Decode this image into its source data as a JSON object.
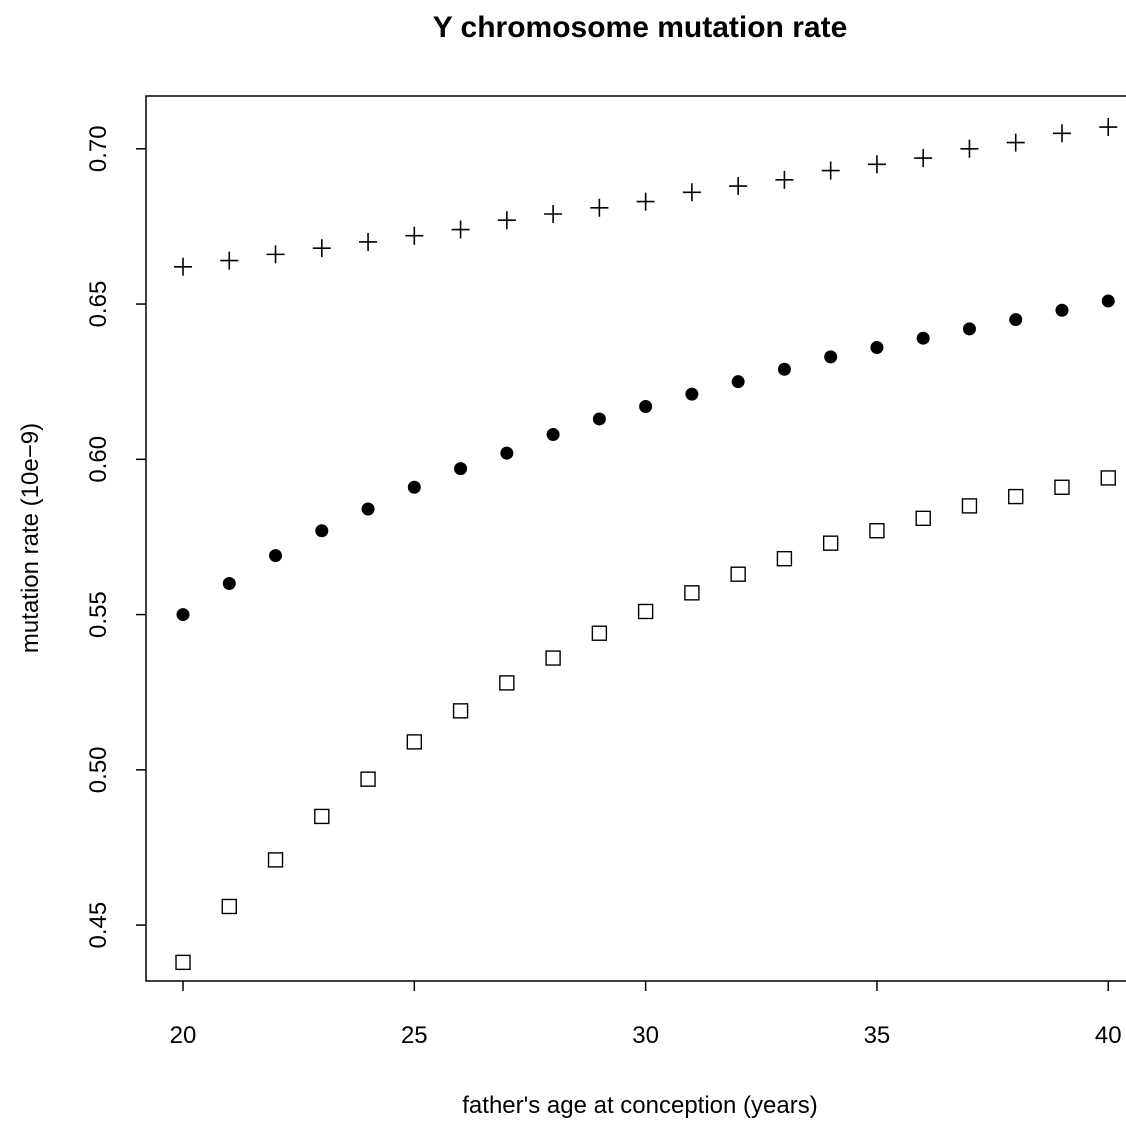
{
  "chart_data": {
    "type": "scatter",
    "title": "Y chromosome mutation rate",
    "xlabel": "father's age at conception (years)",
    "ylabel": "mutation rate (10e−9)",
    "xlim": [
      19.2,
      40.6
    ],
    "ylim": [
      0.432,
      0.717
    ],
    "x_ticks": [
      20,
      25,
      30,
      35,
      40
    ],
    "x_tick_labels": [
      "20",
      "25",
      "30",
      "35",
      "40"
    ],
    "y_ticks": [
      0.45,
      0.5,
      0.55,
      0.6,
      0.65,
      0.7
    ],
    "y_tick_labels": [
      "0.45",
      "0.50",
      "0.55",
      "0.60",
      "0.65",
      "0.70"
    ],
    "grid": false,
    "legend": "none",
    "x": [
      20,
      21,
      22,
      23,
      24,
      25,
      26,
      27,
      28,
      29,
      30,
      31,
      32,
      33,
      34,
      35,
      36,
      37,
      38,
      39,
      40
    ],
    "series": [
      {
        "marker": "plus",
        "color": "#000000",
        "values": [
          0.662,
          0.664,
          0.666,
          0.668,
          0.67,
          0.672,
          0.674,
          0.677,
          0.679,
          0.681,
          0.683,
          0.686,
          0.688,
          0.69,
          0.693,
          0.695,
          0.697,
          0.7,
          0.702,
          0.705,
          0.707
        ]
      },
      {
        "marker": "filled-circle",
        "color": "#000000",
        "values": [
          0.55,
          0.56,
          0.569,
          0.577,
          0.584,
          0.591,
          0.597,
          0.602,
          0.608,
          0.613,
          0.617,
          0.621,
          0.625,
          0.629,
          0.633,
          0.636,
          0.639,
          0.642,
          0.645,
          0.648,
          0.651
        ]
      },
      {
        "marker": "open-square",
        "color": "#000000",
        "values": [
          0.438,
          0.456,
          0.471,
          0.485,
          0.497,
          0.509,
          0.519,
          0.528,
          0.536,
          0.544,
          0.551,
          0.557,
          0.563,
          0.568,
          0.573,
          0.577,
          0.581,
          0.585,
          0.588,
          0.591,
          0.594
        ]
      }
    ]
  }
}
